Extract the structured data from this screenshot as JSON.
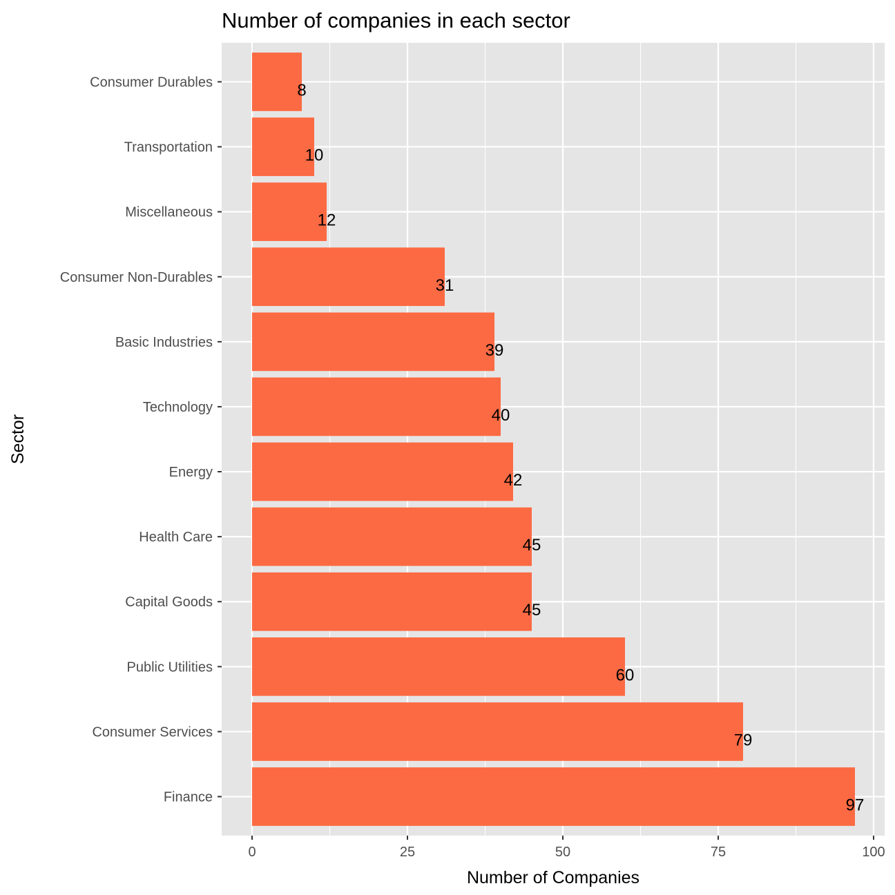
{
  "chart_data": {
    "type": "bar",
    "orientation": "horizontal",
    "title": "Number of companies in each sector",
    "xlabel": "Number of Companies",
    "ylabel": "Sector",
    "categories": [
      "Consumer Durables",
      "Transportation",
      "Miscellaneous",
      "Consumer Non-Durables",
      "Basic Industries",
      "Technology",
      "Energy",
      "Health Care",
      "Capital Goods",
      "Public Utilities",
      "Consumer Services",
      "Finance"
    ],
    "values": [
      8,
      10,
      12,
      31,
      39,
      40,
      42,
      45,
      45,
      60,
      79,
      97
    ],
    "xlim": [
      0,
      100
    ],
    "xticks": [
      0,
      25,
      50,
      75,
      100
    ],
    "grid": true,
    "bar_color": "#FC6A43",
    "panel_color": "#E5E5E5",
    "grid_color": "#FFFFFF"
  }
}
